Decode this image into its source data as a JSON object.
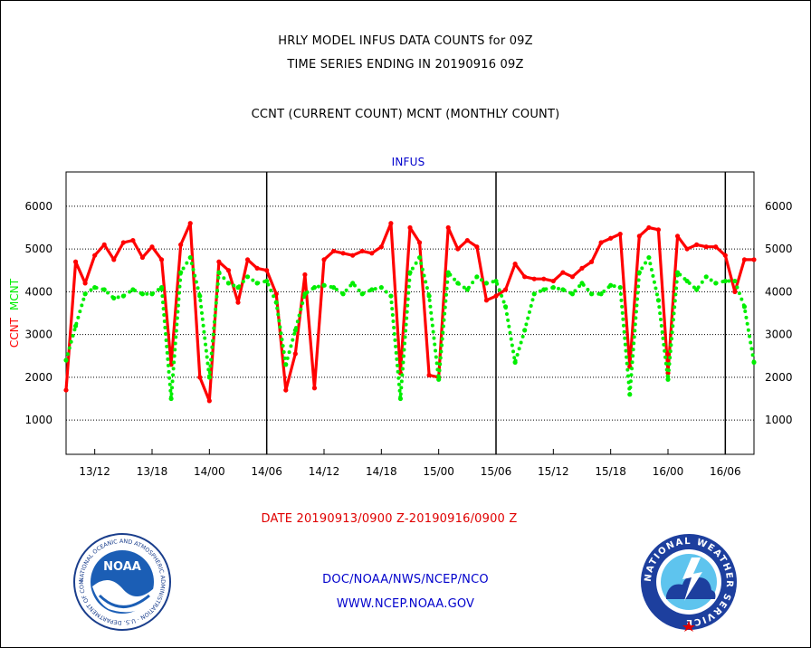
{
  "header": {
    "title1": "HRLY MODEL INFUS DATA COUNTS for 09Z",
    "title2": "TIME SERIES ENDING IN 20190916 09Z",
    "subtitle": "CCNT (CURRENT COUNT) MCNT (MONTHLY COUNT)"
  },
  "colors": {
    "ccnt": "#ff0000",
    "mcnt": "#00ee00",
    "plot_label": "#0000cc",
    "date_range": "#e00000"
  },
  "chart_data": {
    "type": "line",
    "title": "INFUS",
    "xlabel": "DATE 20190913/0900 Z-20190916/0900 Z",
    "ylabel_left": [
      "CCNT",
      "MCNT"
    ],
    "ylim": [
      200,
      6800
    ],
    "yticks": [
      1000,
      2000,
      3000,
      4000,
      5000,
      6000
    ],
    "y_tick_labels": [
      "1000",
      "2000",
      "3000",
      "4000",
      "5000",
      "6000"
    ],
    "xlim": [
      9,
      81
    ],
    "x_ticks": [
      12,
      18,
      24,
      30,
      36,
      42,
      48,
      54,
      60,
      66,
      72,
      78
    ],
    "x_tick_labels": [
      "13/12",
      "13/18",
      "14/00",
      "14/06",
      "14/12",
      "14/18",
      "15/00",
      "15/06",
      "15/12",
      "15/18",
      "16/00",
      "16/06"
    ],
    "day_boundaries": [
      30,
      54,
      78
    ],
    "grid": "horizontal",
    "series": [
      {
        "name": "CCNT",
        "style": "solid",
        "x": [
          9,
          10,
          11,
          12,
          13,
          14,
          15,
          16,
          17,
          18,
          19,
          20,
          21,
          22,
          23,
          24,
          25,
          26,
          27,
          28,
          29,
          30,
          31,
          32,
          33,
          34,
          35,
          36,
          37,
          38,
          39,
          40,
          41,
          42,
          43,
          44,
          45,
          46,
          47,
          48,
          49,
          50,
          51,
          52,
          53,
          54,
          55,
          56,
          57,
          58,
          59,
          60,
          61,
          62,
          63,
          64,
          65,
          66,
          67,
          68,
          69,
          70,
          71,
          72,
          73,
          74,
          75,
          76,
          77,
          78,
          79,
          80,
          81
        ],
        "values": [
          1700,
          4700,
          4200,
          4850,
          5100,
          4750,
          5150,
          5200,
          4800,
          5050,
          4750,
          2300,
          5100,
          5600,
          2000,
          1450,
          4700,
          4500,
          3750,
          4750,
          4550,
          4500,
          3950,
          1700,
          2550,
          4400,
          1750,
          4750,
          4950,
          4900,
          4850,
          4950,
          4900,
          5050,
          5600,
          2100,
          5500,
          5150,
          2050,
          2000,
          5500,
          5000,
          5200,
          5050,
          3800,
          3900,
          4050,
          4650,
          4350,
          4300,
          4300,
          4250,
          4450,
          4350,
          4550,
          4700,
          5150,
          5250,
          5350,
          2250,
          5300,
          5500,
          5450,
          2100,
          5300,
          5000,
          5100,
          5050,
          5050,
          4850,
          4000,
          4750,
          4750
        ]
      },
      {
        "name": "MCNT",
        "style": "dotted",
        "x": [
          9,
          10,
          11,
          12,
          13,
          14,
          15,
          16,
          17,
          18,
          19,
          20,
          21,
          22,
          23,
          24,
          25,
          26,
          27,
          28,
          29,
          30,
          31,
          32,
          33,
          34,
          35,
          36,
          37,
          38,
          39,
          40,
          41,
          42,
          43,
          44,
          45,
          46,
          47,
          48,
          49,
          50,
          51,
          52,
          53,
          54,
          55,
          56,
          57,
          58,
          59,
          60,
          61,
          62,
          63,
          64,
          65,
          66,
          67,
          68,
          69,
          70,
          71,
          72,
          73,
          74,
          75,
          76,
          77,
          78,
          79,
          80,
          81
        ],
        "values": [
          2400,
          3200,
          3950,
          4100,
          4050,
          3850,
          3900,
          4050,
          3950,
          3950,
          4100,
          1500,
          4450,
          4800,
          3900,
          2000,
          4450,
          4200,
          4100,
          4350,
          4200,
          4250,
          3750,
          2300,
          3100,
          3950,
          4100,
          4150,
          4100,
          3950,
          4200,
          3950,
          4050,
          4100,
          3900,
          1500,
          4450,
          4800,
          3900,
          1950,
          4450,
          4200,
          4050,
          4350,
          4200,
          4250,
          3650,
          2350,
          3100,
          3950,
          4050,
          4100,
          4050,
          3950,
          4200,
          3950,
          3950,
          4150,
          4100,
          1600,
          4450,
          4800,
          3800,
          1950,
          4450,
          4250,
          4050,
          4350,
          4200,
          4250,
          4250,
          3650,
          2350
        ]
      }
    ]
  },
  "footer": {
    "line1": "DOC/NOAA/NWS/NCEP/NCO",
    "line2": "WWW.NCEP.NOAA.GOV"
  },
  "logos": {
    "left": {
      "label": "NOAA",
      "ring_text": "NATIONAL OCEANIC AND ATMOSPHERIC ADMINISTRATION · U.S. DEPARTMENT OF COMMERCE"
    },
    "right": {
      "ring_text": "NATIONAL WEATHER SERVICE"
    }
  }
}
